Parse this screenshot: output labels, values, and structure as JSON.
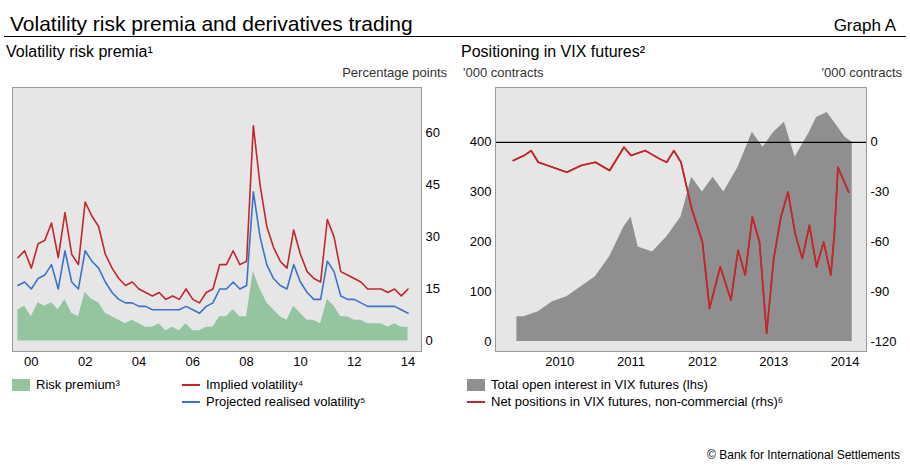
{
  "title": "Volatility risk premia and derivatives trading",
  "label": "Graph A",
  "source": "© Bank for International Settlements",
  "chart_data": [
    {
      "type": "line",
      "title": "Volatility risk premia¹",
      "ylabel": "Percentage points",
      "grid": false,
      "xlim": [
        1999.8,
        2015.0
      ],
      "xticks": [
        {
          "value": 2000.5,
          "label": "00"
        },
        {
          "value": 2002.5,
          "label": "02"
        },
        {
          "value": 2004.5,
          "label": "04"
        },
        {
          "value": 2006.5,
          "label": "06"
        },
        {
          "value": 2008.5,
          "label": "08"
        },
        {
          "value": 2010.5,
          "label": "10"
        },
        {
          "value": 2012.5,
          "label": "12"
        },
        {
          "value": 2014.5,
          "label": "14"
        }
      ],
      "ylim": [
        -3,
        73
      ],
      "yticks": [
        0,
        15,
        30,
        45,
        60
      ],
      "x": [
        2000,
        2000.25,
        2000.5,
        2000.75,
        2001,
        2001.25,
        2001.5,
        2001.75,
        2002,
        2002.25,
        2002.5,
        2002.75,
        2003,
        2003.25,
        2003.5,
        2003.75,
        2004,
        2004.25,
        2004.5,
        2004.75,
        2005,
        2005.25,
        2005.5,
        2005.75,
        2006,
        2006.25,
        2006.5,
        2006.75,
        2007,
        2007.25,
        2007.5,
        2007.75,
        2008,
        2008.25,
        2008.5,
        2008.75,
        2009,
        2009.25,
        2009.5,
        2009.75,
        2010,
        2010.25,
        2010.5,
        2010.75,
        2011,
        2011.25,
        2011.5,
        2011.75,
        2012,
        2012.25,
        2012.5,
        2012.75,
        2013,
        2013.25,
        2013.5,
        2013.75,
        2014,
        2014.25,
        2014.5
      ],
      "series": [
        {
          "name": "Risk premium³",
          "type": "area",
          "color": "#94c4a0",
          "values": [
            9,
            10,
            7,
            11,
            10,
            11,
            9,
            12,
            8,
            7,
            14,
            12,
            11,
            8,
            7,
            6,
            5,
            6,
            5,
            4,
            4,
            5,
            3,
            4,
            3,
            5,
            3,
            3,
            4,
            4,
            7,
            7,
            9,
            7,
            7,
            20,
            15,
            11,
            9,
            7,
            6,
            10,
            8,
            6,
            6,
            5,
            12,
            10,
            7,
            7,
            6,
            6,
            5,
            5,
            5,
            4,
            5,
            4,
            4
          ]
        },
        {
          "name": "Implied volatility⁴",
          "type": "line",
          "color": "#c1272d",
          "values": [
            24,
            26,
            21,
            28,
            29,
            34,
            24,
            37,
            25,
            22,
            40,
            36,
            33,
            25,
            21,
            18,
            16,
            17,
            15,
            14,
            13,
            14,
            12,
            13,
            12,
            15,
            12,
            11,
            14,
            15,
            22,
            22,
            26,
            22,
            23,
            62,
            45,
            33,
            27,
            23,
            21,
            32,
            25,
            20,
            18,
            17,
            35,
            30,
            20,
            19,
            18,
            17,
            15,
            15,
            15,
            14,
            15,
            13,
            15
          ]
        },
        {
          "name": "Projected realised volatility⁵",
          "type": "line",
          "color": "#3b73c8",
          "values": [
            16,
            17,
            15,
            18,
            19,
            22,
            15,
            26,
            17,
            15,
            26,
            23,
            21,
            17,
            14,
            12,
            11,
            11,
            10,
            10,
            9,
            9,
            9,
            9,
            9,
            10,
            9,
            8,
            10,
            11,
            15,
            15,
            17,
            15,
            16,
            43,
            30,
            22,
            18,
            16,
            15,
            22,
            17,
            14,
            12,
            12,
            23,
            20,
            13,
            12,
            12,
            11,
            10,
            10,
            10,
            10,
            10,
            9,
            8
          ]
        }
      ]
    },
    {
      "type": "line",
      "title": "Positioning in VIX futures²",
      "ylabel": "'000 contracts",
      "y2label": "'000 contracts",
      "grid": false,
      "xlim": [
        2009.6,
        2014.8
      ],
      "xticks": [
        {
          "value": 2010.5,
          "label": "2010"
        },
        {
          "value": 2011.5,
          "label": "2011"
        },
        {
          "value": 2012.5,
          "label": "2012"
        },
        {
          "value": 2013.5,
          "label": "2013"
        },
        {
          "value": 2014.5,
          "label": "2014"
        }
      ],
      "ylim": [
        -20,
        510
      ],
      "yticks": [
        0,
        100,
        200,
        300,
        400
      ],
      "y2lim": [
        -126,
        33
      ],
      "y2ticks": [
        0,
        -30,
        -60,
        -90,
        -120
      ],
      "reference_lines": [
        {
          "axis": "y2",
          "value": 0,
          "color": "#000000"
        }
      ],
      "series": [
        {
          "name": "Total open interest in VIX futures (lhs)",
          "type": "area",
          "color": "#8f8f8f",
          "axis": "y",
          "x": [
            2009.9,
            2010.0,
            2010.2,
            2010.4,
            2010.6,
            2010.8,
            2011.0,
            2011.2,
            2011.4,
            2011.5,
            2011.6,
            2011.8,
            2012.0,
            2012.2,
            2012.35,
            2012.5,
            2012.65,
            2012.8,
            2013.0,
            2013.2,
            2013.35,
            2013.5,
            2013.65,
            2013.8,
            2014.0,
            2014.1,
            2014.25,
            2014.4,
            2014.5,
            2014.6
          ],
          "values": [
            50,
            50,
            60,
            80,
            90,
            110,
            130,
            170,
            230,
            250,
            190,
            180,
            210,
            250,
            330,
            300,
            330,
            300,
            350,
            420,
            390,
            420,
            440,
            370,
            420,
            450,
            460,
            430,
            410,
            400
          ]
        },
        {
          "name": "Net positions in VIX futures, non-commercial (rhs)⁶",
          "type": "line",
          "color": "#c1272d",
          "axis": "y2",
          "x": [
            2009.85,
            2010.0,
            2010.1,
            2010.2,
            2010.4,
            2010.6,
            2010.8,
            2011.0,
            2011.2,
            2011.4,
            2011.5,
            2011.7,
            2011.9,
            2012.0,
            2012.1,
            2012.2,
            2012.35,
            2012.5,
            2012.6,
            2012.75,
            2012.9,
            2013.0,
            2013.1,
            2013.2,
            2013.3,
            2013.4,
            2013.5,
            2013.6,
            2013.7,
            2013.8,
            2013.9,
            2014.0,
            2014.1,
            2014.2,
            2014.3,
            2014.35,
            2014.4,
            2014.5,
            2014.55
          ],
          "values": [
            -11,
            -8,
            -5,
            -12,
            -15,
            -18,
            -14,
            -12,
            -17,
            -3,
            -8,
            -5,
            -10,
            -12,
            -5,
            -12,
            -40,
            -60,
            -100,
            -75,
            -95,
            -65,
            -80,
            -45,
            -60,
            -115,
            -70,
            -45,
            -30,
            -55,
            -70,
            -50,
            -75,
            -60,
            -80,
            -55,
            -15,
            -25,
            -30
          ]
        }
      ]
    }
  ]
}
